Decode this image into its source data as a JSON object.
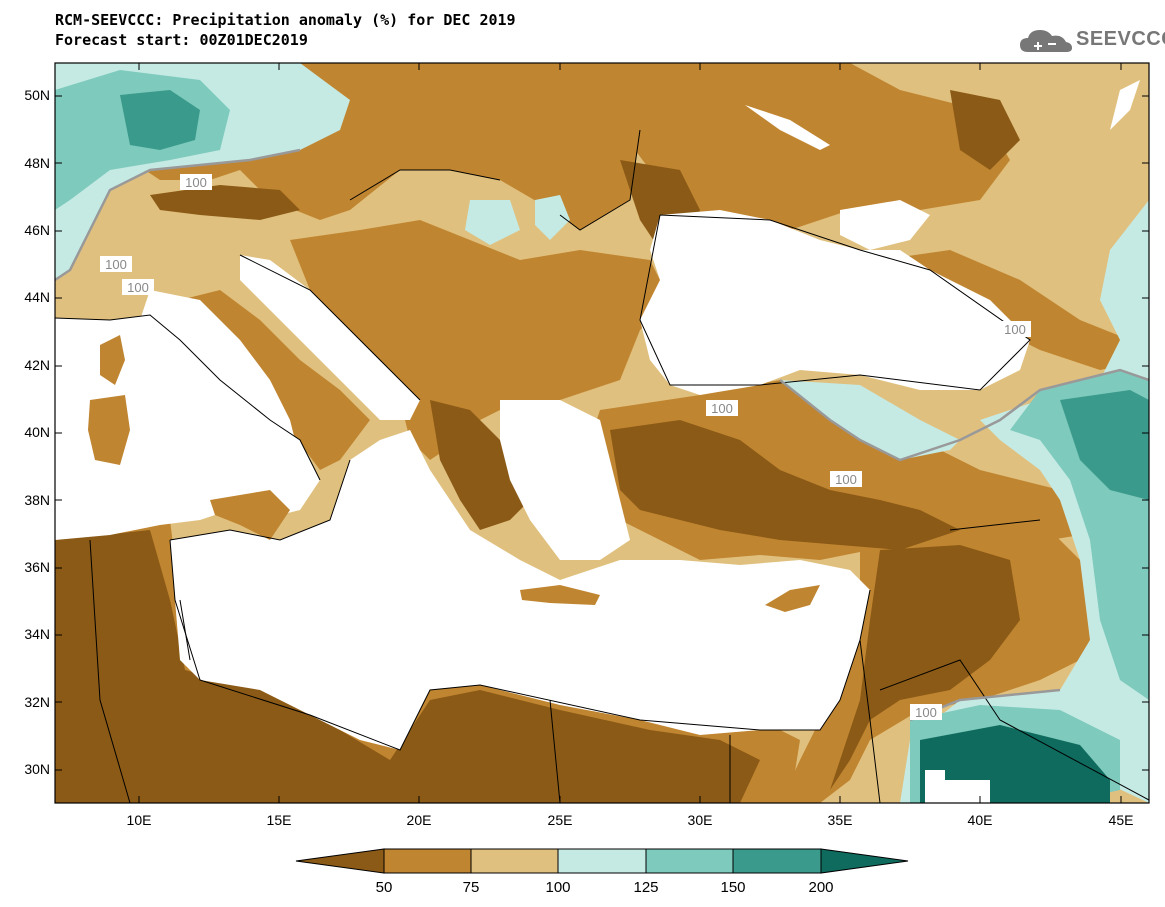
{
  "header": {
    "title_line1": "RCM-SEEVCCC: Precipitation anomaly (%) for DEC 2019",
    "title_line2": "Forecast start: 00Z01DEC2019"
  },
  "logo": {
    "text": "SEEVCCC",
    "icon": "cloud-icon"
  },
  "map": {
    "lon_range": [
      7,
      46
    ],
    "lat_range": [
      29,
      51
    ],
    "lat_ticks": [
      "50N",
      "48N",
      "46N",
      "44N",
      "42N",
      "40N",
      "38N",
      "36N",
      "34N",
      "32N",
      "30N"
    ],
    "lon_ticks": [
      "10E",
      "15E",
      "20E",
      "25E",
      "30E",
      "35E",
      "40E",
      "45E"
    ],
    "contour_labels": [
      "100",
      "100",
      "100",
      "100",
      "100",
      "100",
      "100",
      "100"
    ],
    "background_color": "#E0C07E"
  },
  "colorbar": {
    "labels": [
      "50",
      "75",
      "100",
      "125",
      "150",
      "200"
    ],
    "colors": [
      "#8B5A16",
      "#C08530",
      "#E0C07E",
      "#C5EAE4",
      "#7ECABC",
      "#3A9A8C",
      "#0E6B5E"
    ]
  }
}
